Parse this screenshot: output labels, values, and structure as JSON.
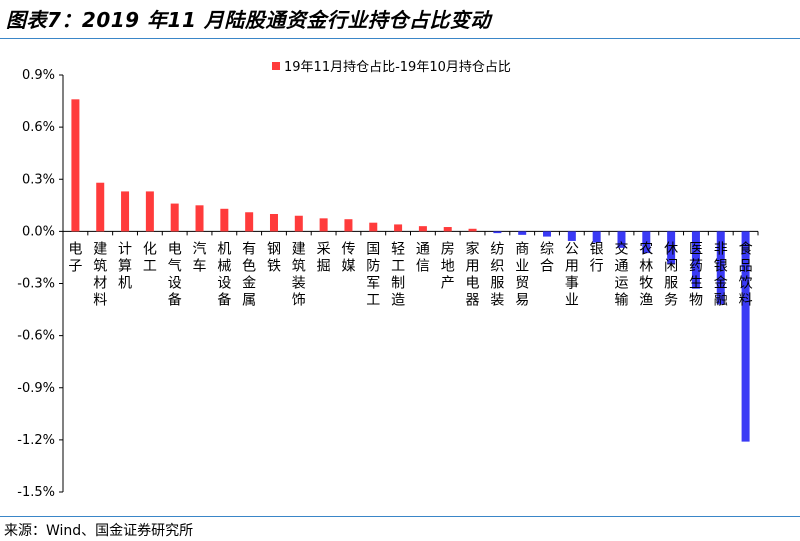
{
  "header": {
    "title": "图表7：2019 年11 月陆股通资金行业持仓占比变动"
  },
  "footer": {
    "source": "来源：Wind、国金证券研究所"
  },
  "colors": {
    "positive": "#ff3b3b",
    "negative": "#3a3af5",
    "rule": "#3a86c8"
  },
  "chart_data": {
    "type": "bar",
    "title": "图表7：2019 年11 月陆股通资金行业持仓占比变动",
    "xlabel": "",
    "ylabel": "",
    "ylim": [
      -1.5,
      0.9
    ],
    "yticks": [
      0.9,
      0.6,
      0.3,
      0.0,
      -0.3,
      -0.6,
      -0.9,
      -1.2,
      -1.5
    ],
    "ytick_labels": [
      "0.9%",
      "0.6%",
      "0.3%",
      "0.0%",
      "-0.3%",
      "-0.6%",
      "-0.9%",
      "-1.2%",
      "-1.5%"
    ],
    "grid": false,
    "legend_position": "top-center",
    "categories": [
      "电子",
      "建筑材料",
      "计算机",
      "化工",
      "电气设备",
      "汽车",
      "机械设备",
      "有色金属",
      "钢铁",
      "建筑装饰",
      "采掘",
      "传媒",
      "国防军工",
      "轻工制造",
      "通信",
      "房地产",
      "家用电器",
      "纺织服装",
      "商业贸易",
      "综合",
      "公用事业",
      "银行",
      "交通运输",
      "农林牧渔",
      "休闲服务",
      "医药生物",
      "非银金融",
      "食品饮料"
    ],
    "series": [
      {
        "name": "19年11月持仓占比-19年10月持仓占比",
        "values": [
          0.76,
          0.28,
          0.23,
          0.23,
          0.16,
          0.15,
          0.13,
          0.11,
          0.1,
          0.09,
          0.075,
          0.07,
          0.05,
          0.04,
          0.03,
          0.025,
          0.015,
          -0.01,
          -0.02,
          -0.03,
          -0.055,
          -0.065,
          -0.095,
          -0.125,
          -0.19,
          -0.33,
          -0.42,
          -1.21
        ]
      }
    ]
  }
}
